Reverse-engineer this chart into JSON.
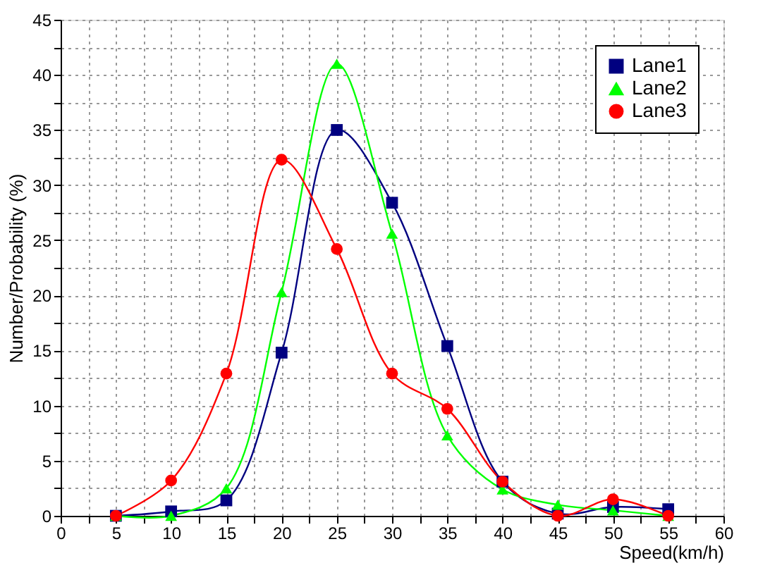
{
  "chart_data": {
    "type": "line",
    "xlabel": "Speed(km/h)",
    "ylabel": "Number/Probability (%)",
    "x": [
      5,
      10,
      15,
      20,
      25,
      30,
      35,
      40,
      45,
      50,
      55
    ],
    "series": [
      {
        "name": "Lane1",
        "color": "#000080",
        "marker": "square",
        "values": [
          0,
          0.4,
          1.4,
          14.8,
          35,
          28.4,
          15.4,
          3.1,
          0.2,
          0.8,
          0.6
        ]
      },
      {
        "name": "Lane2",
        "color": "#00ff00",
        "marker": "triangle",
        "values": [
          0,
          0,
          2.5,
          20.3,
          41,
          25.6,
          7.3,
          2.4,
          1.0,
          0.5,
          0
        ]
      },
      {
        "name": "Lane3",
        "color": "#ff0000",
        "marker": "circle",
        "values": [
          0,
          3.2,
          12.9,
          32.3,
          24.2,
          12.9,
          9.7,
          3.1,
          0,
          1.5,
          0
        ]
      }
    ],
    "xlim": [
      0,
      60
    ],
    "ylim": [
      0,
      45
    ],
    "xticks": [
      0,
      {
        "value": 2.5,
        "label": null
      },
      5,
      {
        "value": 7.5,
        "label": null
      },
      10,
      {
        "value": 12.5,
        "label": null
      },
      15,
      {
        "value": 17.5,
        "label": null
      },
      20,
      {
        "value": 22.5,
        "label": null
      },
      25,
      {
        "value": 27.5,
        "label": null
      },
      30,
      {
        "value": 32.5,
        "label": null
      },
      35,
      {
        "value": 37.5,
        "label": null
      },
      40,
      {
        "value": 42.5,
        "label": null
      },
      45,
      {
        "value": 47.5,
        "label": null
      },
      50,
      {
        "value": 52.5,
        "label": null
      },
      55,
      {
        "value": 57.5,
        "label": null
      },
      60
    ],
    "yticks": [
      0,
      {
        "value": 2.5,
        "label": null
      },
      5,
      {
        "value": 7.5,
        "label": null
      },
      10,
      {
        "value": 12.5,
        "label": null
      },
      15,
      {
        "value": 17.5,
        "label": null
      },
      20,
      {
        "value": 22.5,
        "label": null
      },
      25,
      {
        "value": 27.5,
        "label": null
      },
      30,
      {
        "value": 32.5,
        "label": null
      },
      35,
      {
        "value": 37.5,
        "label": null
      },
      40,
      {
        "value": 42.5,
        "label": null
      },
      45
    ],
    "grid": true,
    "legend": "top right",
    "line_style": "solid"
  }
}
